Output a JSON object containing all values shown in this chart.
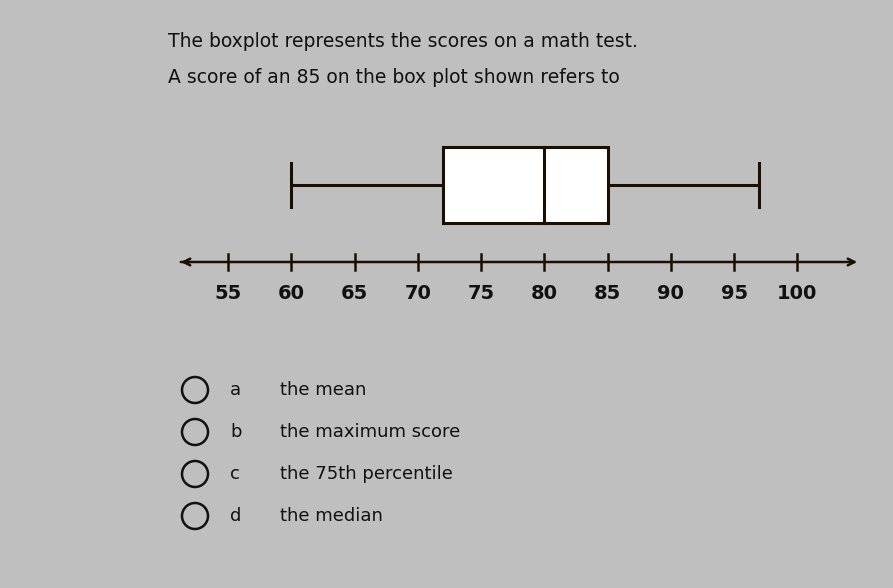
{
  "title1": "The boxplot represents the scores on a math test.",
  "title2": "A score of an 85 on the box plot shown refers to",
  "whisker_low": 60,
  "q1": 72,
  "median": 80,
  "q3": 85,
  "whisker_high": 97,
  "xmin": 52,
  "xmax": 104,
  "xticks": [
    55,
    60,
    65,
    70,
    75,
    80,
    85,
    90,
    95,
    100
  ],
  "options": [
    {
      "label": "a",
      "text": "the mean"
    },
    {
      "label": "b",
      "text": "the maximum score"
    },
    {
      "label": "c",
      "text": "the 75th percentile"
    },
    {
      "label": "d",
      "text": "the median"
    }
  ],
  "bg_color": "#c0bfbf",
  "box_color": "#1a0f00",
  "text_color": "#111111",
  "title_fontsize": 13.5,
  "tick_fontsize": 14,
  "option_fontsize": 13
}
